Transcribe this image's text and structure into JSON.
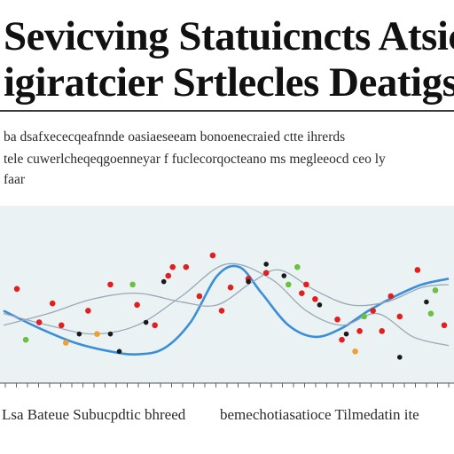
{
  "title": {
    "line1": "Sevicving Statuicncts Atsic",
    "line2": "igiratcier Srtlecles Deatigs"
  },
  "body": {
    "line1": "ba dsafxececqeafnnde oasiaeseeam bonoenecraied ctte ihrerds",
    "line2": "tele cuwerlcheqeqgoenneyar f fuclecorqocteano ms megleeocd ceo ly",
    "line3": "faar"
  },
  "captions": {
    "left": "Lsa Bateue Subucpdtic bhreed",
    "right": "bemechotiasatioce Tilmedatin ite"
  },
  "colors": {
    "chart_bg": "#eaf2f4",
    "blue_curve": "#3a8fd8",
    "grey_curve": "#9aa9b5",
    "red": "#e02020",
    "green": "#6cc040",
    "orange": "#f0a030",
    "dark": "#1a1a1a"
  },
  "chart_data": {
    "type": "scatter",
    "title": "",
    "xlabel": "",
    "ylabel": "",
    "xlim": [
      0,
      100
    ],
    "ylim": [
      0,
      100
    ],
    "grid": false,
    "curves": [
      {
        "style": "blue",
        "x": [
          0,
          8,
          16,
          24,
          30,
          36,
          42,
          48,
          53,
          58,
          64,
          70,
          76,
          82,
          88,
          94,
          100
        ],
        "y": [
          40,
          28,
          18,
          12,
          10,
          14,
          32,
          64,
          70,
          52,
          30,
          22,
          28,
          40,
          50,
          58,
          62
        ]
      },
      {
        "style": "grey",
        "x": [
          0,
          10,
          20,
          30,
          40,
          48,
          56,
          62,
          70,
          78,
          86,
          94,
          100
        ],
        "y": [
          30,
          38,
          48,
          52,
          46,
          44,
          60,
          68,
          54,
          44,
          46,
          56,
          58
        ]
      },
      {
        "style": "grey",
        "x": [
          0,
          10,
          20,
          30,
          40,
          50,
          60,
          68,
          76,
          84,
          92,
          100
        ],
        "y": [
          38,
          30,
          24,
          30,
          50,
          72,
          62,
          40,
          30,
          38,
          22,
          16
        ]
      }
    ],
    "points": [
      {
        "x": 3,
        "y": 55,
        "c": "red"
      },
      {
        "x": 5,
        "y": 20,
        "c": "green"
      },
      {
        "x": 8,
        "y": 32,
        "c": "red"
      },
      {
        "x": 11,
        "y": 45,
        "c": "red"
      },
      {
        "x": 13,
        "y": 30,
        "c": "red"
      },
      {
        "x": 14,
        "y": 18,
        "c": "orange"
      },
      {
        "x": 17,
        "y": 24,
        "c": "dark"
      },
      {
        "x": 19,
        "y": 40,
        "c": "red"
      },
      {
        "x": 21,
        "y": 24,
        "c": "orange"
      },
      {
        "x": 24,
        "y": 58,
        "c": "red"
      },
      {
        "x": 24,
        "y": 24,
        "c": "dark"
      },
      {
        "x": 26,
        "y": 12,
        "c": "dark"
      },
      {
        "x": 29,
        "y": 58,
        "c": "green"
      },
      {
        "x": 30,
        "y": 44,
        "c": "red"
      },
      {
        "x": 32,
        "y": 32,
        "c": "dark"
      },
      {
        "x": 34,
        "y": 30,
        "c": "red"
      },
      {
        "x": 36,
        "y": 60,
        "c": "dark"
      },
      {
        "x": 37,
        "y": 64,
        "c": "red"
      },
      {
        "x": 38,
        "y": 70,
        "c": "red"
      },
      {
        "x": 41,
        "y": 70,
        "c": "red"
      },
      {
        "x": 44,
        "y": 50,
        "c": "red"
      },
      {
        "x": 47,
        "y": 78,
        "c": "red"
      },
      {
        "x": 49,
        "y": 40,
        "c": "red"
      },
      {
        "x": 51,
        "y": 56,
        "c": "red"
      },
      {
        "x": 55,
        "y": 62,
        "c": "red"
      },
      {
        "x": 55,
        "y": 60,
        "c": "dark"
      },
      {
        "x": 59,
        "y": 72,
        "c": "dark"
      },
      {
        "x": 59,
        "y": 66,
        "c": "red"
      },
      {
        "x": 63,
        "y": 64,
        "c": "dark"
      },
      {
        "x": 64,
        "y": 58,
        "c": "green"
      },
      {
        "x": 66,
        "y": 70,
        "c": "green"
      },
      {
        "x": 67,
        "y": 52,
        "c": "red"
      },
      {
        "x": 68,
        "y": 58,
        "c": "red"
      },
      {
        "x": 70,
        "y": 48,
        "c": "red"
      },
      {
        "x": 71,
        "y": 44,
        "c": "dark"
      },
      {
        "x": 75,
        "y": 34,
        "c": "red"
      },
      {
        "x": 76,
        "y": 20,
        "c": "red"
      },
      {
        "x": 77,
        "y": 24,
        "c": "dark"
      },
      {
        "x": 79,
        "y": 12,
        "c": "orange"
      },
      {
        "x": 80,
        "y": 26,
        "c": "red"
      },
      {
        "x": 81,
        "y": 36,
        "c": "green"
      },
      {
        "x": 83,
        "y": 40,
        "c": "red"
      },
      {
        "x": 85,
        "y": 26,
        "c": "red"
      },
      {
        "x": 87,
        "y": 50,
        "c": "red"
      },
      {
        "x": 89,
        "y": 36,
        "c": "red"
      },
      {
        "x": 89,
        "y": 8,
        "c": "dark"
      },
      {
        "x": 93,
        "y": 68,
        "c": "red"
      },
      {
        "x": 95,
        "y": 46,
        "c": "dark"
      },
      {
        "x": 96,
        "y": 38,
        "c": "green"
      },
      {
        "x": 97,
        "y": 54,
        "c": "green"
      },
      {
        "x": 99,
        "y": 30,
        "c": "red"
      }
    ]
  }
}
